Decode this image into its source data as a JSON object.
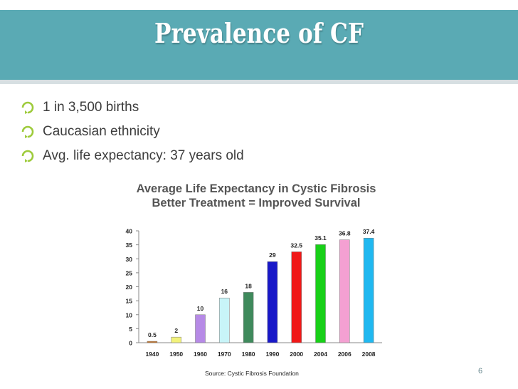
{
  "slide": {
    "title": "Prevalence of CF",
    "bullets": [
      "1 in 3,500 births",
      "Caucasian ethnicity",
      "Avg. life expectancy: 37 years old"
    ],
    "page_number": "6",
    "colors": {
      "title_bar": "#5aaab4",
      "bullet_icon": "#9ecb3c"
    }
  },
  "chart_data": {
    "type": "bar",
    "title": "Average Life Expectancy in Cystic Fibrosis",
    "subtitle": "Better Treatment = Improved Survival",
    "categories": [
      "1940",
      "1950",
      "1960",
      "1970",
      "1980",
      "1990",
      "2000",
      "2004",
      "2006",
      "2008"
    ],
    "values": [
      0.5,
      2,
      10,
      16,
      18,
      29,
      32.5,
      35.1,
      36.8,
      37.4
    ],
    "value_labels": [
      "0.5",
      "2",
      "10",
      "16",
      "18",
      "29",
      "32.5",
      "35.1",
      "36.8",
      "37.4"
    ],
    "bar_colors": [
      "#c8772a",
      "#f2f27a",
      "#b68ae6",
      "#c8f4f8",
      "#3f8a5c",
      "#1818c8",
      "#f01818",
      "#18d018",
      "#f4a0d2",
      "#20b8f0"
    ],
    "ylim": [
      0,
      40
    ],
    "yticks": [
      0,
      5,
      10,
      15,
      20,
      25,
      30,
      35,
      40
    ],
    "xlabel": "",
    "ylabel": "",
    "source": "Source: Cystic Fibrosis Foundation"
  }
}
